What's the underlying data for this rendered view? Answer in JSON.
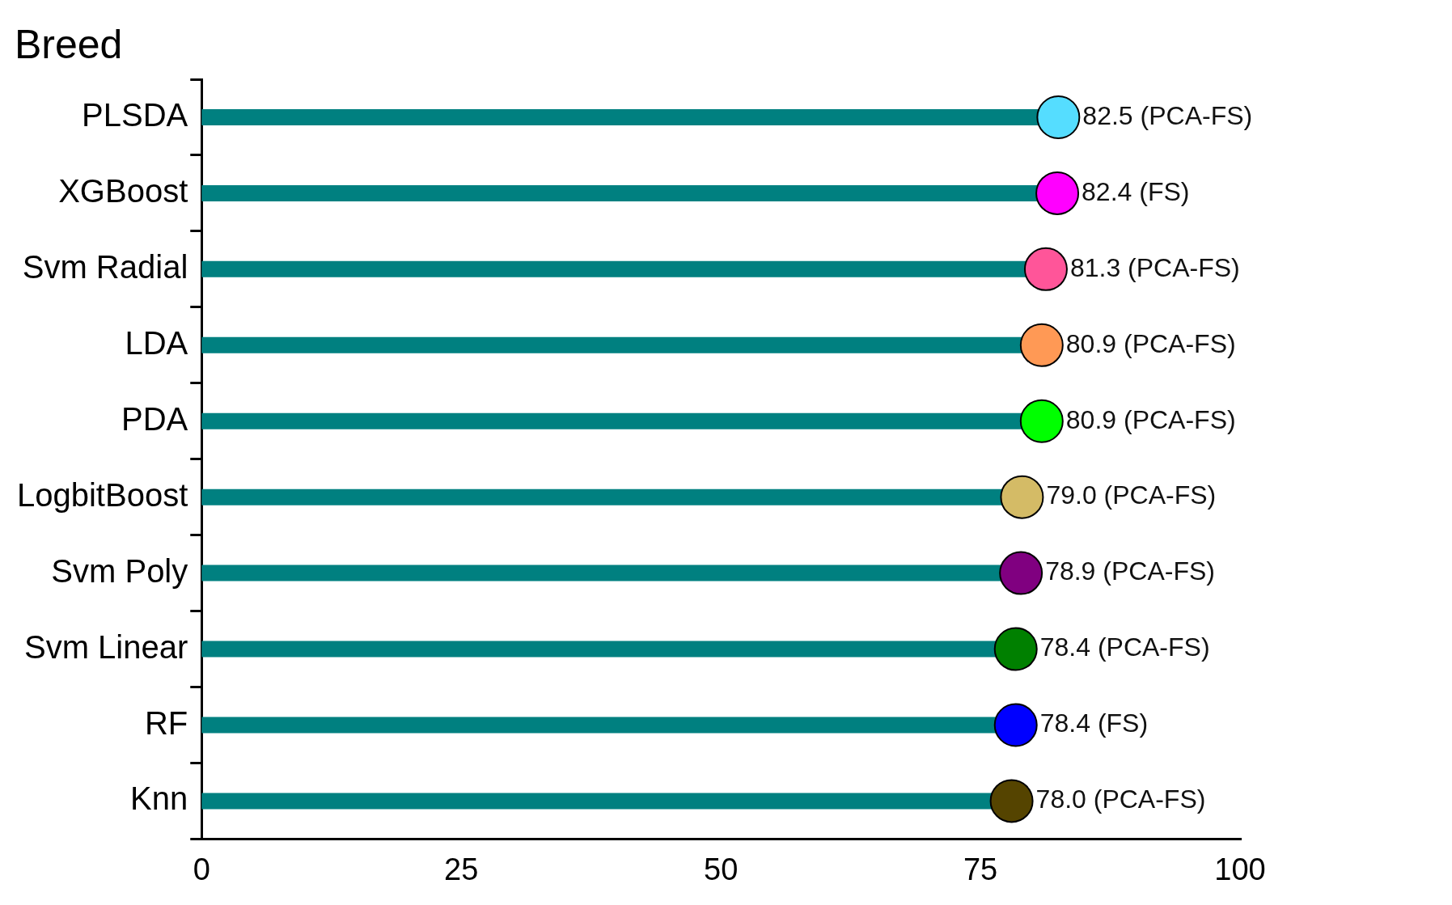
{
  "chart_data": {
    "type": "lollipop",
    "title": "Breed",
    "orientation": "horizontal",
    "categories": [
      "PLSDA",
      "XGBoost",
      "Svm Radial",
      "LDA",
      "PDA",
      "LogbitBoost",
      "Svm Poly",
      "Svm Linear",
      "RF",
      "Knn"
    ],
    "series": [
      {
        "color": "#008080",
        "colors": [
          "#55ddff",
          "#ff00ff",
          "#ff5599",
          "#ff9955",
          "#00ff00",
          "#d4bb66",
          "#800080",
          "#008000",
          "#0000ff",
          "#554400"
        ],
        "values": [
          82.5,
          82.4,
          81.3,
          80.9,
          80.9,
          79.0,
          78.9,
          78.4,
          78.4,
          78.0
        ],
        "value_labels": [
          "82.5 (PCA-FS)",
          "82.4 (FS)",
          "81.3 (PCA-FS)",
          "80.9 (PCA-FS)",
          "80.9 (PCA-FS)",
          "79.0 (PCA-FS)",
          "78.9 (PCA-FS)",
          "78.4 (PCA-FS)",
          "78.4 (FS)",
          "78.0 (PCA-FS)"
        ]
      }
    ],
    "xlim": [
      0,
      100
    ],
    "xticks": [
      0,
      25,
      50,
      75,
      100
    ],
    "grid": false,
    "legend": false,
    "marker": "circle"
  }
}
